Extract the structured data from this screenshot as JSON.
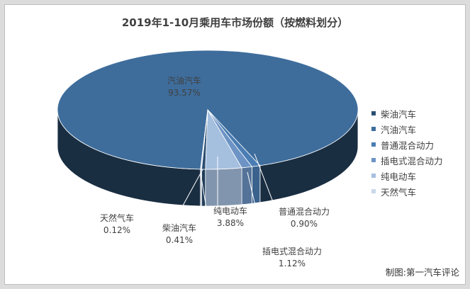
{
  "chart_data": {
    "type": "pie",
    "title": "2019年1-10月乘用车市场份额（按燃料划分）",
    "categories": [
      "柴油汽车",
      "汽油汽车",
      "普通混合动力",
      "插电式混合动力",
      "纯电动车",
      "天然气车"
    ],
    "values": [
      0.41,
      93.57,
      0.9,
      1.12,
      3.88,
      0.12
    ],
    "value_labels": [
      "0.41%",
      "93.57%",
      "0.90%",
      "1.12%",
      "3.88%",
      "0.12%"
    ],
    "legend_position": "right",
    "style": "3d-pie",
    "colors": [
      "#2c4f73",
      "#3e6d9c",
      "#4a7db3",
      "#6d94c4",
      "#a5bfdf",
      "#cbd8ea"
    ]
  },
  "credit": "制图:第一汽车评论"
}
